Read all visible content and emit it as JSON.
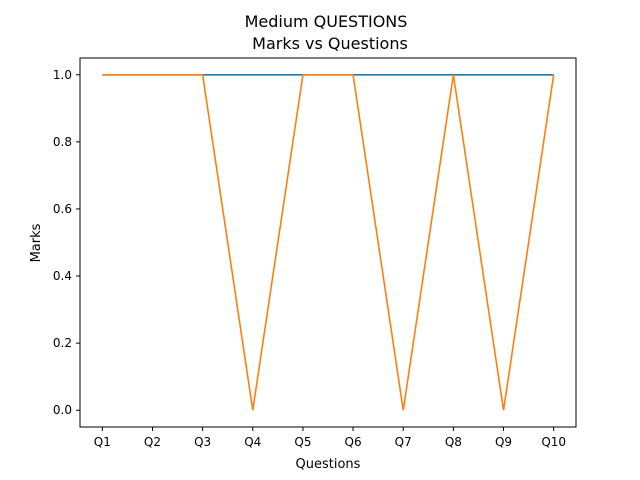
{
  "chart_data": {
    "type": "line",
    "title": "Medium QUESTIONS",
    "subtitle": "Marks vs Questions",
    "xlabel": "Questions",
    "ylabel": "Marks",
    "categories": [
      "Q1",
      "Q2",
      "Q3",
      "Q4",
      "Q5",
      "Q6",
      "Q7",
      "Q8",
      "Q9",
      "Q10"
    ],
    "series": [
      {
        "color": "#1f77b4",
        "values": [
          1,
          1,
          1,
          1,
          1,
          1,
          1,
          1,
          1,
          1
        ]
      },
      {
        "color": "#ff7f0e",
        "values": [
          1,
          1,
          1,
          0,
          1,
          1,
          0,
          1,
          0,
          1
        ]
      }
    ],
    "ylim": [
      -0.05,
      1.05
    ],
    "yticks": [
      0.0,
      0.2,
      0.4,
      0.6,
      0.8,
      1.0
    ],
    "ytick_labels": [
      "0.0",
      "0.2",
      "0.4",
      "0.6",
      "0.8",
      "1.0"
    ],
    "grid": false,
    "legend": "none"
  }
}
